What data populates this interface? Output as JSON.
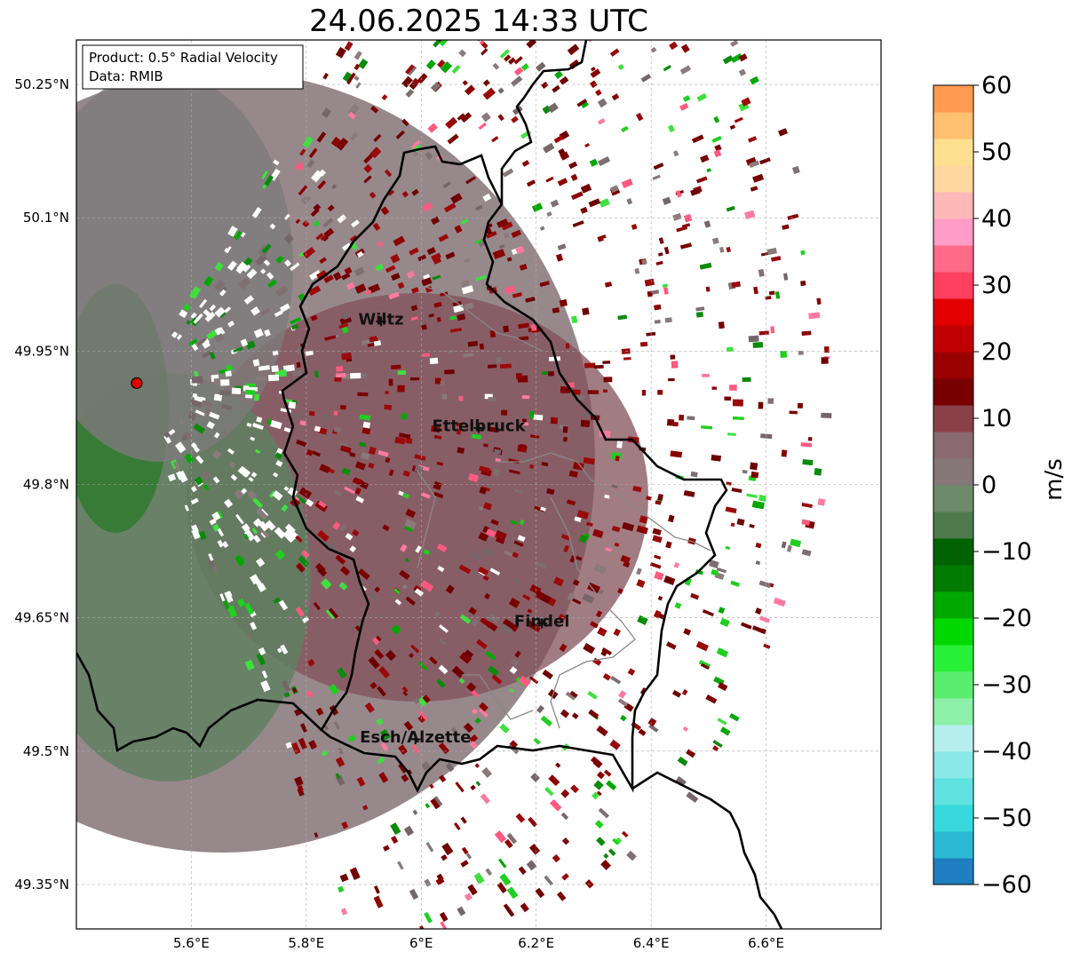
{
  "title": "24.06.2025 14:33 UTC",
  "info_box": {
    "line1": "Product: 0.5° Radial Velocity",
    "line2": "Data: RMIB"
  },
  "map": {
    "lon_range": [
      5.4,
      6.8
    ],
    "lat_range": [
      49.3,
      50.3
    ],
    "lon_ticks": [
      {
        "value": 5.6,
        "label": "5.6°E"
      },
      {
        "value": 5.8,
        "label": "5.8°E"
      },
      {
        "value": 6.0,
        "label": "6°E"
      },
      {
        "value": 6.2,
        "label": "6.2°E"
      },
      {
        "value": 6.4,
        "label": "6.4°E"
      },
      {
        "value": 6.6,
        "label": "6.6°E"
      }
    ],
    "lat_ticks": [
      {
        "value": 50.25,
        "label": "50.25°N"
      },
      {
        "value": 50.1,
        "label": "50.1°N"
      },
      {
        "value": 49.95,
        "label": "49.95°N"
      },
      {
        "value": 49.8,
        "label": "49.8°N"
      },
      {
        "value": 49.65,
        "label": "49.65°N"
      },
      {
        "value": 49.5,
        "label": "49.5°N"
      },
      {
        "value": 49.35,
        "label": "49.35°N"
      }
    ],
    "radar_site": {
      "lon": 5.505,
      "lat": 49.914
    },
    "cities": [
      {
        "name": "Wiltz",
        "lon": 5.93,
        "lat": 49.97
      },
      {
        "name": "Ettelbruck",
        "lon": 6.1,
        "lat": 49.85
      },
      {
        "name": "Findel",
        "lon": 6.21,
        "lat": 49.63
      },
      {
        "name": "Esch/Alzette",
        "lon": 5.99,
        "lat": 49.5
      }
    ]
  },
  "colorbar": {
    "min": -60,
    "max": 60,
    "unit": "m/s",
    "ticks": [
      "60",
      "50",
      "40",
      "30",
      "20",
      "10",
      "0",
      "−10",
      "−20",
      "−30",
      "−40",
      "−50",
      "−60"
    ],
    "colors": [
      "#1f7fc0",
      "#2cb9d4",
      "#37d8dc",
      "#5fe2e0",
      "#8ae8e6",
      "#b6eeee",
      "#8cf0a8",
      "#5bee6e",
      "#28f038",
      "#00d800",
      "#00a800",
      "#007a00",
      "#006200",
      "#4e7a4e",
      "#6d8a6a",
      "#857777",
      "#8a6a72",
      "#8a4048",
      "#780000",
      "#9a0000",
      "#c00000",
      "#e40000",
      "#ff4060",
      "#ff6a88",
      "#ff9cc8",
      "#ffb8b8",
      "#ffd8a0",
      "#ffe090",
      "#ffc070",
      "#ff9a50"
    ]
  }
}
